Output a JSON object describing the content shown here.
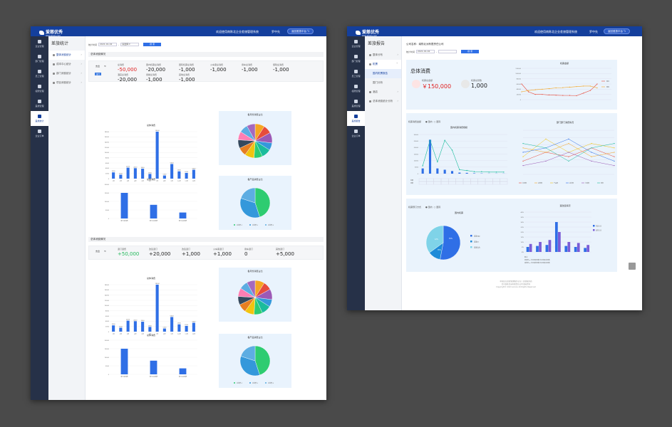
{
  "left": {
    "brand": {
      "name": "爱慈优秀",
      "sub": "www.aicixiu.com"
    },
    "welcome": "欢迎使用南陈北企业差旅管理系统",
    "user": "罗中先",
    "back_btn": "返回差旅平台",
    "sidebar": [
      "企业管理",
      "部门管理",
      "员工管理",
      "权限管理",
      "差旅管理",
      "差旅统计",
      "企业订单"
    ],
    "sidebar_active": 5,
    "sub_title": "差旅统计",
    "sub_items": [
      "整体消费统计",
      "成本中心统计",
      "部门消费统计",
      "项目消费统计"
    ],
    "filter": {
      "label": "统计时间",
      "date": "2021-01-02",
      "sep": "-",
      "type": "请选择",
      "btn": "搜 索"
    },
    "sections": [
      {
        "title": "总体消费情况",
        "dept": "支出",
        "tag": "部门",
        "kpis": [
          {
            "label": "总消费",
            "value": "-50,000"
          },
          {
            "label": "国内机票总消费",
            "value": "-20,000"
          },
          {
            "label": "国际机票总消费",
            "value": "-1,000"
          },
          {
            "label": "火车票总消费",
            "value": "-1,000"
          },
          {
            "label": "用车总消费",
            "value": "-1,000"
          },
          {
            "label": "保险总消费",
            "value": "-1,000"
          },
          {
            "label": "酒店总消费",
            "value": "-20,000"
          },
          {
            "label": "用餐总消费",
            "value": "-1,000"
          },
          {
            "label": "其他总消费",
            "value": "-1,000"
          }
        ]
      },
      {
        "title": "总体消费情况",
        "dept": "支出",
        "tag": "",
        "kpis": [
          {
            "label": "退订退费",
            "value": "+50,000"
          },
          {
            "label": "改签退订",
            "value": "+20,000"
          },
          {
            "label": "改签退订",
            "value": "+1,000"
          },
          {
            "label": "火车票退订",
            "value": "+1,000"
          },
          {
            "label": "用车退订",
            "value": "0"
          },
          {
            "label": "其他退订",
            "value": "+5,000"
          }
        ]
      }
    ],
    "charts": {
      "monthly_title": "总体消费",
      "dept_title": "总体消费",
      "pie1_title": "各月份消费占比",
      "pie2_title": "各产品消费占比",
      "pie2_legend": [
        "总消费-1",
        "总消费-2",
        "总消费-3"
      ]
    }
  },
  "right": {
    "brand": {
      "name": "爱慈优秀",
      "sub": "www.aicixiu.com"
    },
    "welcome": "欢迎使用南陈北企业差旅管理系统",
    "user": "罗中先",
    "back_btn": "返回差旅平台",
    "sidebar": [
      "企业管理",
      "部门管理",
      "员工管理",
      "权限管理",
      "差旅管理",
      "差旅报告",
      "企业订单"
    ],
    "sidebar_active": 5,
    "sub_title": "差旅报告",
    "sub_items": [
      "整体分布",
      "机票",
      "国内机票报告",
      "国门分析",
      "酒店",
      "总体消费统计分析"
    ],
    "company": "公司名称：南陈北洲有限责任公司",
    "filter": {
      "label": "统计时间",
      "date": "2021-01-02",
      "sep": "-",
      "btn": "搜 索"
    },
    "summary": {
      "title": "总体消费",
      "k1_label": "机票总金额",
      "k1_value": "￥150,000",
      "k2_label": "机票总张数",
      "k2_value": "1,000"
    },
    "line_title": "机票金额",
    "line_legend": [
      "国内",
      "国际"
    ],
    "bar_panel": {
      "label": "机票消费金额",
      "radio": [
        "国内",
        "国际"
      ],
      "title": "国内机票消费规模"
    },
    "table_rows": [
      "金额",
      "张数"
    ],
    "multiline_title": "部门部门消费情况",
    "multiline_legend": [
      "市场部",
      "运营部",
      "产品部",
      "技术部",
      "行政部",
      "财务"
    ],
    "pie_panel": {
      "label": "机票预订方式",
      "radio": [
        "国内",
        "国际"
      ],
      "title": "国内机票"
    },
    "pie_legend": [
      "差旅app",
      "差旅pc",
      "差旅后台"
    ],
    "pie_values": [
      "53%",
      "12%",
      "35%"
    ],
    "bar2_title": "退改签情况",
    "bar2_legend": [
      "退票占比",
      "改签占比"
    ],
    "bar2_notes": [
      "备注：",
      "退票率 = 当月退票张数/当月机票总张数",
      "改签率 = 当月改签张数/当月机票总张数"
    ],
    "footer": [
      "中国企业差旅管理服务企业 | 差旅服务商",
      "北京南陈北洲有限责任公司 版权所有",
      "Copyright© 2021 aicixiu All Rights Reserved"
    ]
  },
  "chart_data": [
    {
      "type": "bar",
      "title": "总体消费",
      "categories": [
        "1月",
        "2月",
        "3月",
        "4月",
        "5月",
        "6月",
        "7月",
        "8月",
        "9月",
        "10月",
        "11月",
        "12月"
      ],
      "values": [
        2400,
        1500,
        4200,
        4000,
        3800,
        1800,
        18000,
        1200,
        5600,
        2800,
        2200,
        3400
      ],
      "ylim": [
        0,
        18000
      ]
    },
    {
      "type": "bar",
      "title": "总体消费",
      "categories": [
        "部门总消费",
        "部门1总消费",
        "部门2总消费"
      ],
      "values": [
        15000,
        8000,
        3500
      ],
      "ylim": [
        0,
        20000
      ]
    },
    {
      "type": "pie",
      "title": "各月份消费占比",
      "values": [
        9,
        8,
        10,
        7,
        9,
        8,
        9,
        8,
        8,
        8,
        8,
        8
      ]
    },
    {
      "type": "pie",
      "title": "各产品消费占比",
      "legend": [
        "总消费-1",
        "总消费-2",
        "总消费-3"
      ],
      "values": [
        45,
        35,
        20
      ]
    },
    {
      "type": "line",
      "title": "机票金额",
      "series": [
        {
          "name": "国内",
          "values": [
            60000,
            30000,
            20000,
            20000,
            18000,
            17000,
            16000,
            16000,
            15000,
            25000,
            35000,
            60000
          ]
        },
        {
          "name": "国际",
          "values": [
            30000,
            35000,
            38000,
            40000,
            42000,
            45000,
            46000,
            48000,
            50000,
            52000,
            52000,
            45000
          ]
        }
      ],
      "ylim": [
        0,
        120000
      ]
    },
    {
      "type": "bar",
      "title": "国内机票消费规模",
      "values": [
        400,
        2600,
        400,
        300,
        200,
        80,
        60,
        30,
        20,
        10,
        10,
        10
      ]
    },
    {
      "type": "line",
      "title": "部门部门消费情况",
      "legend": [
        "市场部",
        "运营部",
        "产品部",
        "技术部",
        "行政部",
        "财务"
      ]
    },
    {
      "type": "pie",
      "title": "国内机票",
      "legend": [
        "差旅app",
        "差旅pc",
        "差旅后台"
      ],
      "values": [
        53,
        12,
        35
      ]
    },
    {
      "type": "bar",
      "title": "退改签情况",
      "legend": [
        "退票占比",
        "改签占比"
      ],
      "series": [
        {
          "name": "退票占比",
          "values": [
            5,
            6,
            7,
            30,
            6,
            5,
            4
          ]
        },
        {
          "name": "改签占比",
          "values": [
            8,
            10,
            12,
            20,
            10,
            9,
            7
          ]
        }
      ],
      "ylim": [
        0,
        40
      ]
    }
  ]
}
